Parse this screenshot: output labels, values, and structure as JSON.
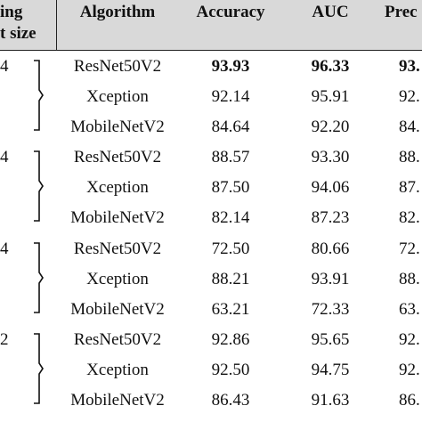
{
  "header": {
    "col0_line1": "ing",
    "col0_line2": "t size",
    "algorithm": "Algorithm",
    "accuracy": "Accuracy",
    "auc": "AUC",
    "precision": "Prec"
  },
  "groups": [
    {
      "label": "4",
      "rows": [
        {
          "algorithm": "ResNet50V2",
          "accuracy": "93.93",
          "auc": "96.33",
          "precision": "93.",
          "bold": true
        },
        {
          "algorithm": "Xception",
          "accuracy": "92.14",
          "auc": "95.91",
          "precision": "92.",
          "bold": false
        },
        {
          "algorithm": "MobileNetV2",
          "accuracy": "84.64",
          "auc": "92.20",
          "precision": "84.",
          "bold": false
        }
      ]
    },
    {
      "label": "4",
      "rows": [
        {
          "algorithm": "ResNet50V2",
          "accuracy": "88.57",
          "auc": "93.30",
          "precision": "88.",
          "bold": false
        },
        {
          "algorithm": "Xception",
          "accuracy": "87.50",
          "auc": "94.06",
          "precision": "87.",
          "bold": false
        },
        {
          "algorithm": "MobileNetV2",
          "accuracy": "82.14",
          "auc": "87.23",
          "precision": "82.",
          "bold": false
        }
      ]
    },
    {
      "label": "4",
      "rows": [
        {
          "algorithm": "ResNet50V2",
          "accuracy": "72.50",
          "auc": "80.66",
          "precision": "72.",
          "bold": false
        },
        {
          "algorithm": "Xception",
          "accuracy": "88.21",
          "auc": "93.91",
          "precision": "88.",
          "bold": false
        },
        {
          "algorithm": "MobileNetV2",
          "accuracy": "63.21",
          "auc": "72.33",
          "precision": "63.",
          "bold": false
        }
      ]
    },
    {
      "label": "2",
      "rows": [
        {
          "algorithm": "ResNet50V2",
          "accuracy": "92.86",
          "auc": "95.65",
          "precision": "92.",
          "bold": false
        },
        {
          "algorithm": "Xception",
          "accuracy": "92.50",
          "auc": "94.75",
          "precision": "92.",
          "bold": false
        },
        {
          "algorithm": "MobileNetV2",
          "accuracy": "86.43",
          "auc": "91.63",
          "precision": "86.",
          "bold": false
        }
      ]
    }
  ]
}
